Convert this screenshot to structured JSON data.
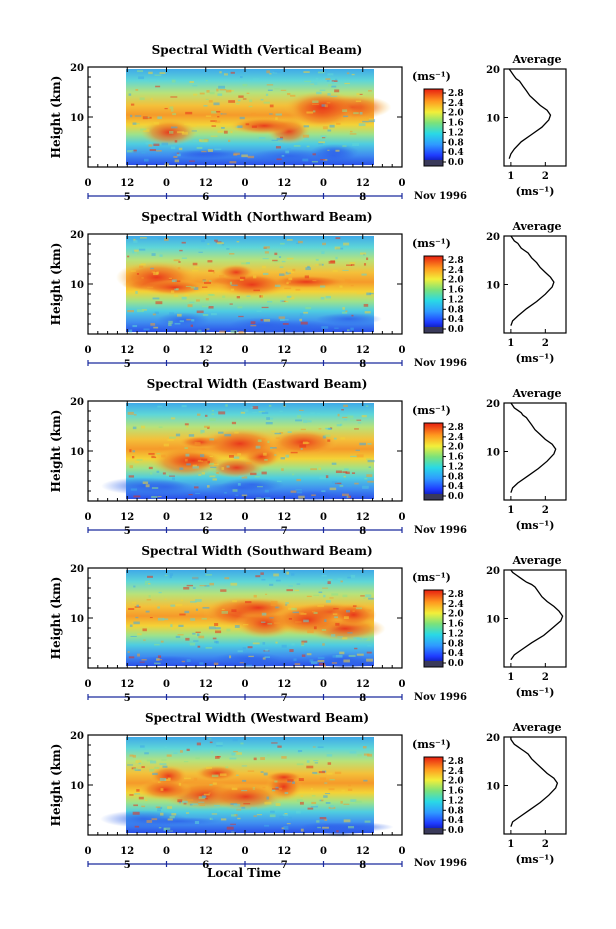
{
  "figure": {
    "date_label": "Nov 1996",
    "xlabel": "Local Time"
  },
  "panels": [
    {
      "title": "Spectral Width (Vertical Beam)",
      "profile_title": "Average",
      "ylabel": "Height (km)",
      "colorbar_unit": "(ms⁻¹)",
      "profile_unit": "(ms⁻¹)"
    },
    {
      "title": "Spectral Width (Northward Beam)",
      "profile_title": "Average",
      "ylabel": "Height (km)",
      "colorbar_unit": "(ms⁻¹)",
      "profile_unit": "(ms⁻¹)"
    },
    {
      "title": "Spectral Width (Eastward Beam)",
      "profile_title": "Average",
      "ylabel": "Height (km)",
      "colorbar_unit": "(ms⁻¹)",
      "profile_unit": "(ms⁻¹)"
    },
    {
      "title": "Spectral Width (Southward Beam)",
      "profile_title": "Average",
      "ylabel": "Height (km)",
      "colorbar_unit": "(ms⁻¹)",
      "profile_unit": "(ms⁻¹)"
    },
    {
      "title": "Spectral Width (Westward Beam)",
      "profile_title": "Average",
      "ylabel": "Height (km)",
      "colorbar_unit": "(ms⁻¹)",
      "profile_unit": "(ms⁻¹)"
    }
  ],
  "chart_data": [
    {
      "type": "heatmap",
      "title": "Spectral Width (Vertical Beam)",
      "ylabel": "Height (km)",
      "ylim": [
        0,
        20
      ],
      "yticks": [
        10,
        20
      ],
      "xticks": [
        "0",
        "12",
        "0",
        "12",
        "0",
        "12",
        "0",
        "12",
        "0"
      ],
      "day_ticks": [
        "5",
        "6",
        "7",
        "8"
      ],
      "colorbar_ticks": [
        "0.0",
        "0.4",
        "0.8",
        "1.2",
        "1.6",
        "2.0",
        "2.4",
        "2.8"
      ],
      "profile": {
        "title": "Average",
        "xticks": [
          "1",
          "2"
        ],
        "yticks": [
          10,
          20
        ],
        "xlabel": "(ms⁻¹)",
        "x": [
          0.95,
          1.0,
          1.1,
          1.3,
          1.6,
          1.9,
          2.1,
          2.15,
          2.05,
          1.85,
          1.7,
          1.55,
          1.45,
          1.35,
          1.3,
          1.25,
          1.15,
          1.1,
          1.05,
          1.0,
          0.95
        ],
        "y": [
          1.5,
          2.5,
          3.5,
          5,
          6.5,
          8,
          9.5,
          10.5,
          11.5,
          12.5,
          13.5,
          14.5,
          15.5,
          16.5,
          17,
          17.5,
          18,
          18.5,
          19,
          19.5,
          20
        ]
      }
    },
    {
      "type": "heatmap",
      "title": "Spectral Width (Northward Beam)",
      "ylabel": "Height (km)",
      "ylim": [
        0,
        20
      ],
      "yticks": [
        10,
        20
      ],
      "xticks": [
        "0",
        "12",
        "0",
        "12",
        "0",
        "12",
        "0",
        "12",
        "0"
      ],
      "day_ticks": [
        "5",
        "6",
        "7",
        "8"
      ],
      "colorbar_ticks": [
        "0.0",
        "0.4",
        "0.8",
        "1.2",
        "1.6",
        "2.0",
        "2.4",
        "2.8"
      ],
      "profile": {
        "title": "Average",
        "xticks": [
          "1",
          "2"
        ],
        "yticks": [
          10,
          20
        ],
        "xlabel": "(ms⁻¹)",
        "x": [
          1.0,
          1.05,
          1.2,
          1.45,
          1.75,
          2.0,
          2.2,
          2.25,
          2.15,
          2.0,
          1.85,
          1.75,
          1.6,
          1.5,
          1.4,
          1.3,
          1.25,
          1.2,
          1.1,
          1.05,
          1.0
        ],
        "y": [
          1.5,
          2.5,
          3.5,
          5,
          6.5,
          8,
          9.5,
          10.5,
          11.5,
          12.5,
          13.5,
          14.5,
          15.5,
          16.5,
          17,
          17.5,
          18,
          18.5,
          19,
          19.5,
          20
        ]
      }
    },
    {
      "type": "heatmap",
      "title": "Spectral Width (Eastward Beam)",
      "ylabel": "Height (km)",
      "ylim": [
        0,
        20
      ],
      "yticks": [
        10,
        20
      ],
      "xticks": [
        "0",
        "12",
        "0",
        "12",
        "0",
        "12",
        "0",
        "12",
        "0"
      ],
      "day_ticks": [
        "5",
        "6",
        "7",
        "8"
      ],
      "colorbar_ticks": [
        "0.0",
        "0.4",
        "0.8",
        "1.2",
        "1.6",
        "2.0",
        "2.4",
        "2.8"
      ],
      "profile": {
        "title": "Average",
        "xticks": [
          "1",
          "2"
        ],
        "yticks": [
          10,
          20
        ],
        "xlabel": "(ms⁻¹)",
        "x": [
          1.0,
          1.05,
          1.2,
          1.5,
          1.8,
          2.05,
          2.25,
          2.3,
          2.2,
          2.0,
          1.85,
          1.7,
          1.6,
          1.5,
          1.45,
          1.35,
          1.3,
          1.2,
          1.1,
          1.05,
          1.0
        ],
        "y": [
          1.5,
          2.5,
          3.5,
          5,
          6.5,
          8,
          9.5,
          10.5,
          11.5,
          12.5,
          13.5,
          14.5,
          15.5,
          16.5,
          17,
          17.5,
          18,
          18.5,
          19,
          19.5,
          20
        ]
      }
    },
    {
      "type": "heatmap",
      "title": "Spectral Width (Southward Beam)",
      "ylabel": "Height (km)",
      "ylim": [
        0,
        20
      ],
      "yticks": [
        10,
        20
      ],
      "xticks": [
        "0",
        "12",
        "0",
        "12",
        "0",
        "12",
        "0",
        "12",
        "0"
      ],
      "day_ticks": [
        "5",
        "6",
        "7",
        "8"
      ],
      "colorbar_ticks": [
        "0.0",
        "0.4",
        "0.8",
        "1.2",
        "1.6",
        "2.0",
        "2.4",
        "2.8"
      ],
      "profile": {
        "title": "Average",
        "xticks": [
          "1",
          "2"
        ],
        "yticks": [
          10,
          20
        ],
        "xlabel": "(ms⁻¹)",
        "x": [
          1.0,
          1.1,
          1.3,
          1.6,
          1.95,
          2.2,
          2.45,
          2.5,
          2.4,
          2.25,
          2.05,
          1.9,
          1.8,
          1.7,
          1.6,
          1.45,
          1.35,
          1.25,
          1.15,
          1.05,
          1.0
        ],
        "y": [
          1.5,
          2.5,
          3.5,
          5,
          6.5,
          8,
          9.5,
          10.5,
          11.5,
          12.5,
          13.5,
          14.5,
          15.5,
          16.5,
          17,
          17.5,
          18,
          18.5,
          19,
          19.5,
          20
        ]
      }
    },
    {
      "type": "heatmap",
      "title": "Spectral Width (Westward Beam)",
      "ylabel": "Height (km)",
      "ylim": [
        0,
        20
      ],
      "yticks": [
        10,
        20
      ],
      "xticks": [
        "0",
        "12",
        "0",
        "12",
        "0",
        "12",
        "0",
        "12",
        "0"
      ],
      "day_ticks": [
        "5",
        "6",
        "7",
        "8"
      ],
      "colorbar_ticks": [
        "0.0",
        "0.4",
        "0.8",
        "1.2",
        "1.6",
        "2.0",
        "2.4",
        "2.8"
      ],
      "profile": {
        "title": "Average",
        "xticks": [
          "1",
          "2"
        ],
        "yticks": [
          10,
          20
        ],
        "xlabel": "(ms⁻¹)",
        "x": [
          1.0,
          1.05,
          1.25,
          1.55,
          1.85,
          2.1,
          2.3,
          2.35,
          2.25,
          2.05,
          1.9,
          1.75,
          1.6,
          1.5,
          1.4,
          1.3,
          1.2,
          1.1,
          1.05,
          1.0,
          1.0
        ],
        "y": [
          1.5,
          2.5,
          3.5,
          5,
          6.5,
          8,
          9.5,
          10.5,
          11.5,
          12.5,
          13.5,
          14.5,
          15.5,
          16.5,
          17,
          17.5,
          18,
          18.5,
          19,
          19.5,
          20
        ]
      }
    }
  ]
}
